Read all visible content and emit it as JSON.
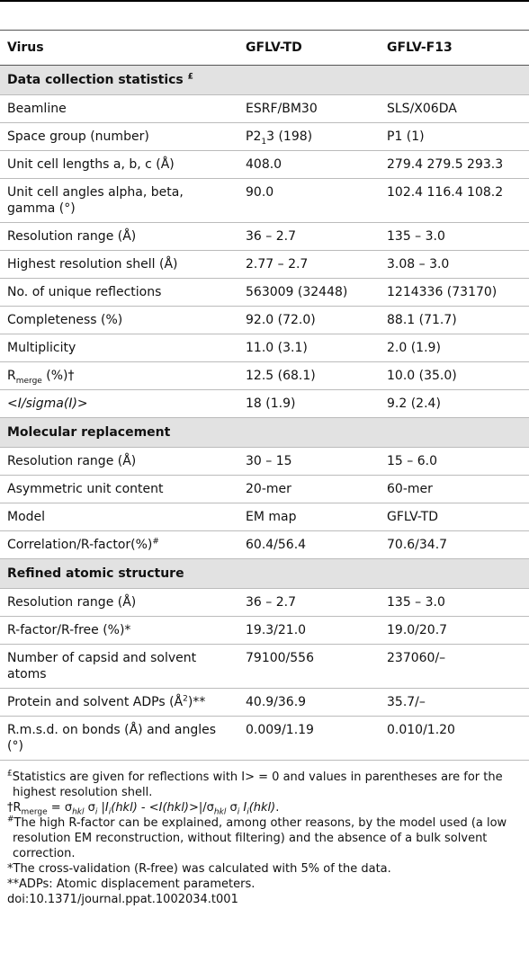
{
  "table": {
    "columns": [
      "Virus",
      "GFLV-TD",
      "GFLV-F13"
    ],
    "sections": [
      {
        "title": [
          {
            "text": "Data collection statistics "
          },
          {
            "text": "£",
            "fmt": "sup"
          }
        ],
        "rows": [
          [
            "Beamline",
            "ESRF/BM30",
            "SLS/X06DA"
          ],
          [
            "Space group (number)",
            [
              {
                "text": "P2"
              },
              {
                "text": "1",
                "fmt": "sub"
              },
              {
                "text": "3 (198)"
              }
            ],
            "P1 (1)"
          ],
          [
            "Unit cell lengths a, b, c (Å)",
            "408.0",
            "279.4 279.5 293.3"
          ],
          [
            "Unit cell angles alpha, beta, gamma (°)",
            "90.0",
            "102.4 116.4 108.2"
          ],
          [
            "Resolution range (Å)",
            "36 – 2.7",
            "135 – 3.0"
          ],
          [
            "Highest resolution shell (Å)",
            "2.77 – 2.7",
            "3.08 – 3.0"
          ],
          [
            "No. of unique reflections",
            "563009 (32448)",
            "1214336 (73170)"
          ],
          [
            "Completeness (%)",
            "92.0 (72.0)",
            "88.1 (71.7)"
          ],
          [
            "Multiplicity",
            "11.0 (3.1)",
            "2.0 (1.9)"
          ],
          [
            [
              {
                "text": "R"
              },
              {
                "text": "merge",
                "fmt": "sub"
              },
              {
                "text": " (%)†"
              }
            ],
            "12.5 (68.1)",
            "10.0 (35.0)"
          ],
          [
            [
              {
                "text": "<I/sigma(I)>",
                "fmt": "i"
              }
            ],
            "18 (1.9)",
            "9.2 (2.4)"
          ]
        ]
      },
      {
        "title": [
          {
            "text": "Molecular replacement"
          }
        ],
        "rows": [
          [
            "Resolution range (Å)",
            "30 – 15",
            "15 – 6.0"
          ],
          [
            "Asymmetric unit content",
            "20-mer",
            "60-mer"
          ],
          [
            "Model",
            "EM map",
            "GFLV-TD"
          ],
          [
            [
              {
                "text": "Correlation/R-factor(%)"
              },
              {
                "text": "#",
                "fmt": "sup"
              }
            ],
            "60.4/56.4",
            "70.6/34.7"
          ]
        ]
      },
      {
        "title": [
          {
            "text": "Refined atomic structure"
          }
        ],
        "rows": [
          [
            "Resolution range (Å)",
            "36 – 2.7",
            "135 – 3.0"
          ],
          [
            "R-factor/R-free (%)*",
            "19.3/21.0",
            "19.0/20.7"
          ],
          [
            "Number of capsid and solvent atoms",
            "79100/556",
            "237060/–"
          ],
          [
            [
              {
                "text": "Protein and solvent ADPs (Å"
              },
              {
                "text": "2",
                "fmt": "sup"
              },
              {
                "text": ")**"
              }
            ],
            "40.9/36.9",
            "35.7/–"
          ],
          [
            "R.m.s.d. on bonds (Å) and angles (°)",
            "0.009/1.19",
            "0.010/1.20"
          ]
        ]
      }
    ]
  },
  "footnotes": [
    [
      {
        "text": "£",
        "fmt": "sup"
      },
      {
        "text": "Statistics are given for reflections with I> = 0 and values in parentheses are for the highest resolution shell."
      }
    ],
    [
      {
        "text": "†R"
      },
      {
        "text": "merge",
        "fmt": "sub"
      },
      {
        "text": " =  σ"
      },
      {
        "text": "hkl",
        "fmt": "subi"
      },
      {
        "text": " σ"
      },
      {
        "text": "i",
        "fmt": "subi"
      },
      {
        "text": " |"
      },
      {
        "text": "I",
        "fmt": "i"
      },
      {
        "text": "i",
        "fmt": "subi"
      },
      {
        "text": "(hkl)",
        "fmt": "i"
      },
      {
        "text": " - <"
      },
      {
        "text": "I(hkl)",
        "fmt": "i"
      },
      {
        "text": ">|/σ"
      },
      {
        "text": "hkl",
        "fmt": "subi"
      },
      {
        "text": " σ"
      },
      {
        "text": "i",
        "fmt": "subi"
      },
      {
        "text": " "
      },
      {
        "text": "I",
        "fmt": "i"
      },
      {
        "text": "i",
        "fmt": "subi"
      },
      {
        "text": "(hkl)",
        "fmt": "i"
      },
      {
        "text": "."
      }
    ],
    [
      {
        "text": "#",
        "fmt": "sup"
      },
      {
        "text": "The high R-factor can be explained, among other reasons, by the model used (a low resolution EM reconstruction, without filtering) and the absence of a bulk solvent correction."
      }
    ],
    [
      {
        "text": "*The cross-validation (R-free) was calculated with 5% of the data."
      }
    ],
    [
      {
        "text": "**ADPs: Atomic displacement parameters."
      }
    ]
  ],
  "doi": "doi:10.1371/journal.ppat.1002034.t001"
}
